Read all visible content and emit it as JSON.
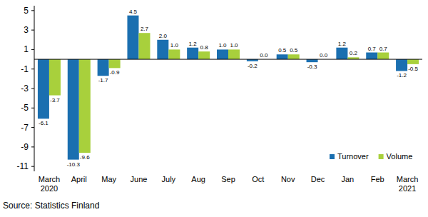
{
  "chart_data": {
    "type": "bar",
    "source": "Source: Statistics Finland",
    "categories": [
      "March 2020",
      "April",
      "May",
      "June",
      "July",
      "Aug",
      "Sep",
      "Oct",
      "Nov",
      "Dec",
      "Jan",
      "Feb",
      "March 2021"
    ],
    "series": [
      {
        "name": "Turnover",
        "color": "#1a6fb0",
        "values": [
          -6.1,
          -10.3,
          -1.7,
          4.5,
          2.0,
          1.2,
          1.0,
          -0.2,
          0.5,
          -0.3,
          1.2,
          0.7,
          -1.2
        ],
        "value_labels": [
          "-6.1",
          "-10.3",
          "-1.7",
          "4.5",
          "2.0",
          "1.2",
          "1.0",
          "-0.2",
          "0.5",
          "-0.3",
          "1.2",
          "0.7",
          "-1.2"
        ]
      },
      {
        "name": "Volume",
        "color": "#a8d03c",
        "values": [
          -3.7,
          -9.6,
          -0.9,
          2.7,
          1.0,
          0.8,
          1.0,
          0.0,
          0.5,
          0.0,
          0.2,
          0.7,
          -0.5
        ],
        "value_labels": [
          "-3.7",
          "-9.6",
          "-0.9",
          "2.7",
          "1.0",
          "0.8",
          "1.0",
          "0.0",
          "0.5",
          "0.0",
          "0.2",
          "0.7",
          "-0.5"
        ]
      }
    ],
    "ylim": [
      -11.5,
      5.5
    ],
    "yticks": [
      5,
      3,
      1,
      -1,
      -3,
      -5,
      -7,
      -9,
      -11
    ],
    "grid": false,
    "legend": "lower right",
    "data_labels": true
  }
}
